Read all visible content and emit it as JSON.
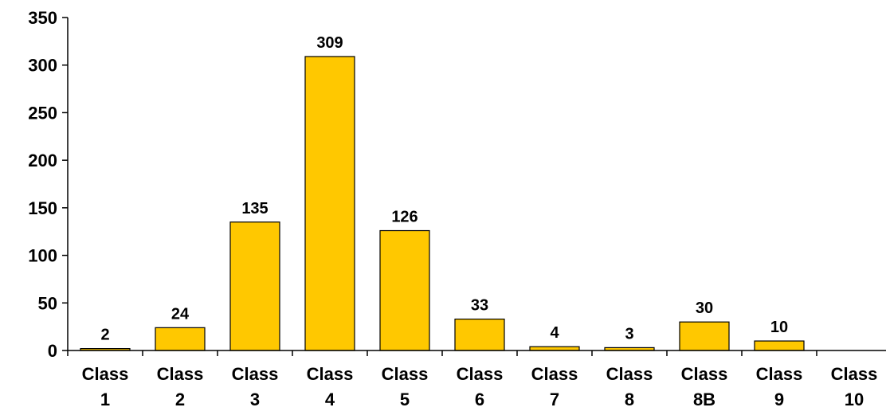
{
  "chart_data": {
    "type": "bar",
    "categories": [
      [
        "Class",
        "1"
      ],
      [
        "Class",
        "2"
      ],
      [
        "Class",
        "3"
      ],
      [
        "Class",
        "4"
      ],
      [
        "Class",
        "5"
      ],
      [
        "Class",
        "6"
      ],
      [
        "Class",
        "7"
      ],
      [
        "Class",
        "8"
      ],
      [
        "Class",
        "8B"
      ],
      [
        "Class",
        "9"
      ],
      [
        "Class",
        "10"
      ]
    ],
    "values": [
      2,
      24,
      135,
      309,
      126,
      33,
      4,
      3,
      30,
      10,
      null
    ],
    "data_labels": [
      "2",
      "24",
      "135",
      "309",
      "126",
      "33",
      "4",
      "3",
      "30",
      "10",
      ""
    ],
    "y_ticks": [
      0,
      50,
      100,
      150,
      200,
      250,
      300,
      350
    ],
    "ylim": [
      0,
      350
    ],
    "title": "",
    "xlabel": "",
    "ylabel": "",
    "grid": false,
    "legend": "none",
    "colors": {
      "bar_fill": "#FFC800",
      "bar_stroke": "#000000",
      "axis": "#000000",
      "text": "#000000"
    }
  }
}
